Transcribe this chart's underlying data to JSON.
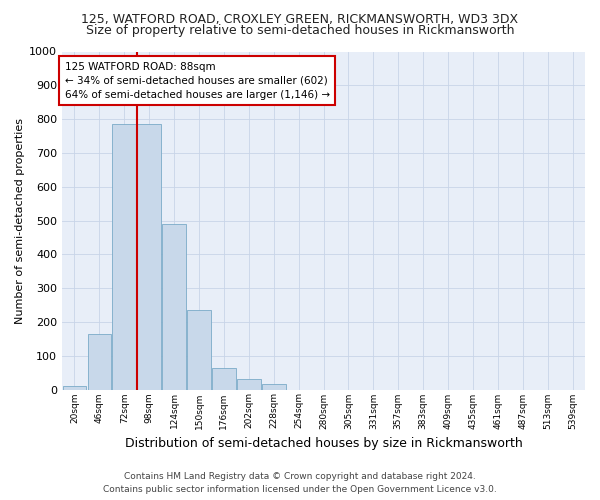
{
  "title1": "125, WATFORD ROAD, CROXLEY GREEN, RICKMANSWORTH, WD3 3DX",
  "title2": "Size of property relative to semi-detached houses in Rickmansworth",
  "xlabel": "Distribution of semi-detached houses by size in Rickmansworth",
  "ylabel": "Number of semi-detached properties",
  "footnote1": "Contains HM Land Registry data © Crown copyright and database right 2024.",
  "footnote2": "Contains public sector information licensed under the Open Government Licence v3.0.",
  "bar_values": [
    10,
    165,
    785,
    785,
    490,
    235,
    65,
    30,
    15,
    0,
    0,
    0,
    0,
    0,
    0,
    0,
    0,
    0,
    0,
    0,
    0
  ],
  "categories": [
    "20sqm",
    "46sqm",
    "72sqm",
    "98sqm",
    "124sqm",
    "150sqm",
    "176sqm",
    "202sqm",
    "228sqm",
    "254sqm",
    "280sqm",
    "305sqm",
    "331sqm",
    "357sqm",
    "383sqm",
    "409sqm",
    "435sqm",
    "461sqm",
    "487sqm",
    "513sqm",
    "539sqm"
  ],
  "bar_color": "#c8d8ea",
  "bar_edge_color": "#7aaac8",
  "vline_x": 2.5,
  "vline_color": "#cc0000",
  "annotation_text": "125 WATFORD ROAD: 88sqm\n← 34% of semi-detached houses are smaller (602)\n64% of semi-detached houses are larger (1,146) →",
  "ylim": [
    0,
    1000
  ],
  "yticks": [
    0,
    100,
    200,
    300,
    400,
    500,
    600,
    700,
    800,
    900,
    1000
  ],
  "bg_color": "#ffffff",
  "axes_bg_color": "#e8eef8",
  "grid_color": "#c8d4e8",
  "title1_fontsize": 9,
  "title2_fontsize": 9,
  "xlabel_fontsize": 9,
  "ylabel_fontsize": 8,
  "footnote_fontsize": 6.5
}
